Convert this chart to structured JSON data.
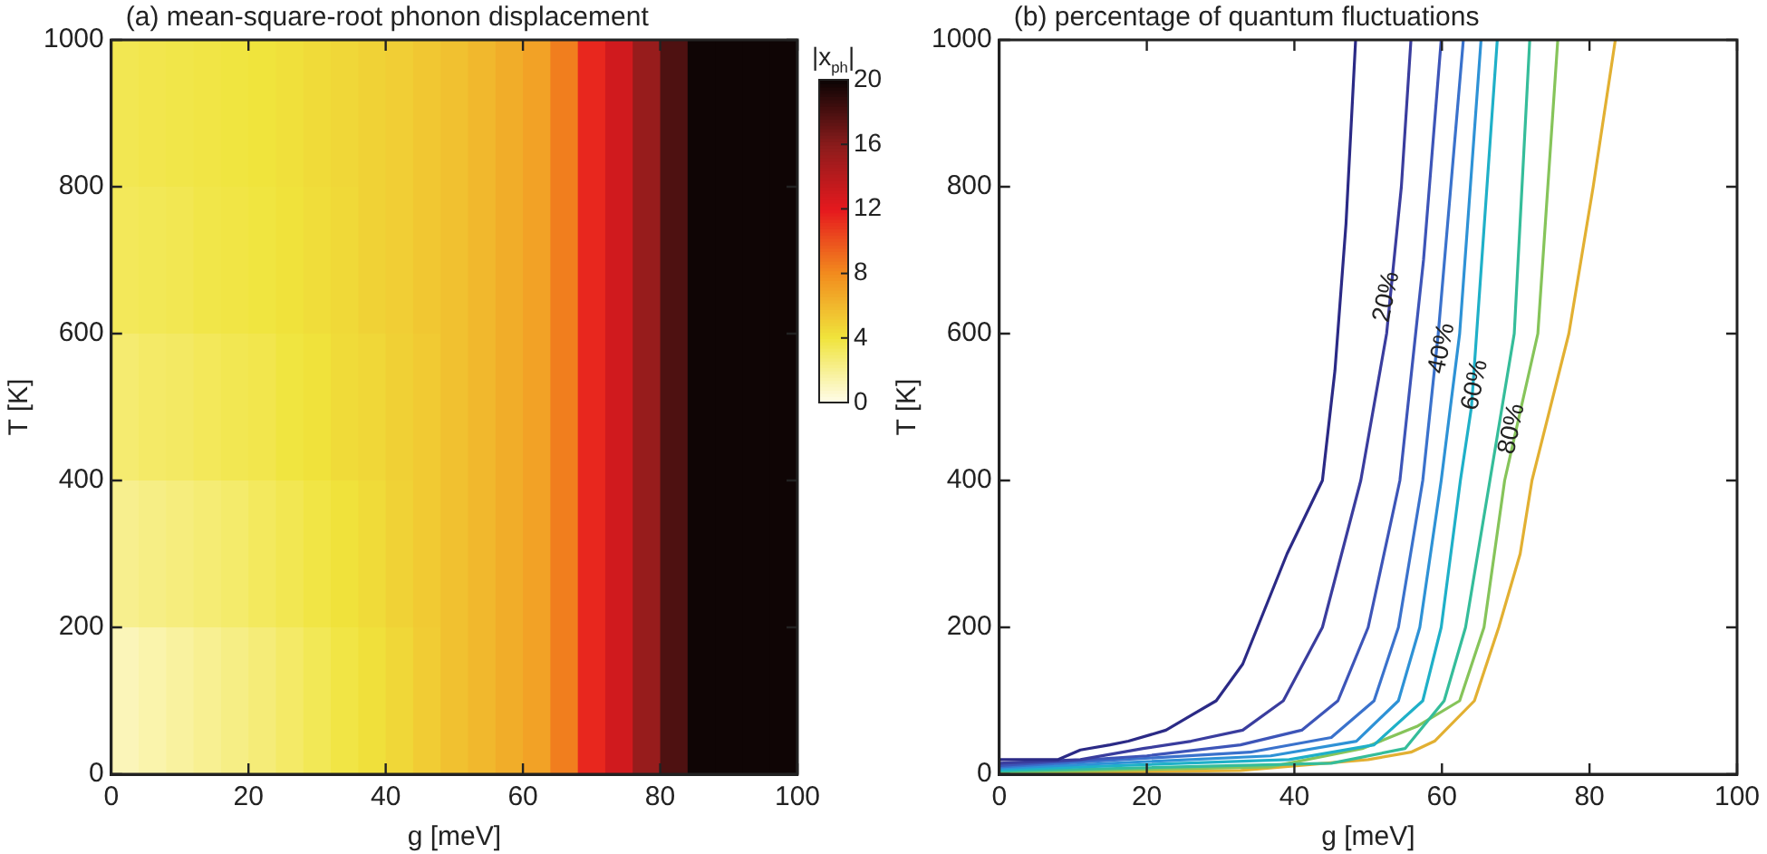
{
  "chart_data": [
    {
      "type": "heatmap",
      "title": "(a) mean-square-root phonon displacement",
      "xlabel": "g [meV]",
      "ylabel": "T [K]",
      "clabel": "|x$_{ph}$|",
      "cells": [
        [
          3.5,
          3.6,
          3.7,
          3.8,
          3.9,
          4.0,
          4.2,
          4.4,
          4.6,
          4.8,
          5.0,
          5.3,
          5.6,
          6.0,
          6.5,
          7.0,
          8.5,
          11.5,
          13,
          15.5,
          18,
          20,
          20,
          20,
          20
        ],
        [
          3.3,
          3.4,
          3.5,
          3.7,
          3.8,
          3.9,
          4.1,
          4.3,
          4.5,
          4.8,
          5.0,
          5.3,
          5.6,
          6.0,
          6.5,
          7.0,
          8.5,
          11.5,
          13,
          15.5,
          18,
          20,
          20,
          20,
          20
        ],
        [
          2.8,
          3.0,
          3.1,
          3.3,
          3.5,
          3.6,
          3.9,
          4.1,
          4.4,
          4.6,
          4.9,
          5.2,
          5.6,
          6.0,
          6.5,
          7.0,
          8.5,
          11.5,
          13,
          15.5,
          18,
          20,
          20,
          20,
          20
        ],
        [
          2.1,
          2.3,
          2.5,
          2.7,
          2.9,
          3.2,
          3.5,
          3.8,
          4.1,
          4.4,
          4.8,
          5.2,
          5.6,
          6.0,
          6.5,
          7.0,
          8.5,
          11.5,
          13,
          15.5,
          18,
          20,
          20,
          20,
          20
        ],
        [
          1.1,
          1.4,
          1.7,
          2.0,
          2.3,
          2.6,
          3.0,
          3.4,
          3.8,
          4.2,
          4.6,
          5.1,
          5.6,
          6.0,
          6.5,
          7.0,
          8.5,
          11.5,
          13,
          15.5,
          18,
          20,
          20,
          20,
          20
        ]
      ],
      "xlim": [
        0,
        100
      ],
      "xticks": [
        0,
        20,
        40,
        60,
        80,
        100
      ],
      "ylim": [
        0,
        1000
      ],
      "yticks": [
        0,
        200,
        400,
        600,
        800,
        1000
      ],
      "clim": [
        0,
        20
      ],
      "cticks": [
        0,
        4,
        8,
        12,
        16,
        20
      ]
    },
    {
      "type": "line",
      "title": "(b) percentage of quantum fluctuations",
      "xlabel": "g [meV]",
      "ylabel": "T [K]",
      "marker": "none",
      "xlim": [
        0,
        100
      ],
      "xticks": [
        0,
        20,
        40,
        60,
        80,
        100
      ],
      "ylim": [
        0,
        1000
      ],
      "yticks": [
        0,
        200,
        400,
        600,
        800,
        1000
      ],
      "series": [
        {
          "color": "#2b2a86",
          "x": [
            0,
            8,
            11,
            15,
            17.5,
            22.6,
            26,
            29.4,
            33,
            35,
            39,
            43.8,
            45.5,
            47,
            48.3
          ],
          "values": [
            20,
            20,
            33,
            40,
            45,
            60,
            80,
            100,
            150,
            200,
            300,
            400,
            550,
            750,
            1000
          ]
        },
        {
          "color": "#3a3d9e",
          "x": [
            0,
            11,
            19.5,
            26,
            33,
            38.5,
            43.8,
            49,
            52.5,
            54.5,
            55.8
          ],
          "values": [
            15,
            20,
            35,
            45,
            60,
            100,
            200,
            400,
            600,
            800,
            1000
          ]
        },
        {
          "color": "#3d55b8",
          "x": [
            0,
            20,
            32.7,
            41,
            45.9,
            50,
            54.3,
            57.5,
            59.9
          ],
          "values": [
            12,
            25,
            40,
            60,
            100,
            200,
            400,
            700,
            1000
          ]
        },
        {
          "color": "#3a72cc",
          "x": [
            0,
            34,
            45,
            50.8,
            54.1,
            57.4,
            59.5,
            62.9
          ],
          "values": [
            10,
            30,
            50,
            100,
            200,
            400,
            600,
            1000
          ]
        },
        {
          "color": "#2e92d6",
          "x": [
            0,
            36.8,
            48.4,
            54.1,
            57,
            59.9,
            62.4,
            65.3
          ],
          "values": [
            8,
            25,
            45,
            100,
            200,
            400,
            600,
            1000
          ]
        },
        {
          "color": "#1fb0c8",
          "x": [
            0,
            39.3,
            50.8,
            57.4,
            59.9,
            62.5,
            64,
            67.5
          ],
          "values": [
            6,
            20,
            40,
            100,
            200,
            400,
            500,
            1000
          ]
        },
        {
          "color": "#35bd9a",
          "x": [
            0,
            45,
            55,
            60.3,
            63.2,
            66.5,
            69.8,
            71.9
          ],
          "values": [
            4,
            15,
            35,
            100,
            200,
            400,
            600,
            1000
          ]
        },
        {
          "color": "#86c45a",
          "x": [
            0,
            36.8,
            49.2,
            56.6,
            62.4,
            65.7,
            68.5,
            73,
            75.7
          ],
          "values": [
            2,
            10,
            35,
            65,
            100,
            200,
            400,
            600,
            1000
          ]
        },
        {
          "color": "#e2b032",
          "x": [
            0,
            32.7,
            50,
            55.8,
            59,
            64.4,
            67.7,
            70.6,
            72.2,
            77.2,
            80.5,
            83.5
          ],
          "values": [
            1,
            5,
            20,
            30,
            45,
            100,
            200,
            300,
            400,
            600,
            800,
            1000
          ]
        }
      ],
      "annotations": [
        {
          "text": "20%",
          "x": 52.5,
          "y": 650
        },
        {
          "text": "40%",
          "x": 60,
          "y": 580
        },
        {
          "text": "60%",
          "x": 64.5,
          "y": 530
        },
        {
          "text": "80%",
          "x": 69.5,
          "y": 470
        }
      ]
    }
  ]
}
